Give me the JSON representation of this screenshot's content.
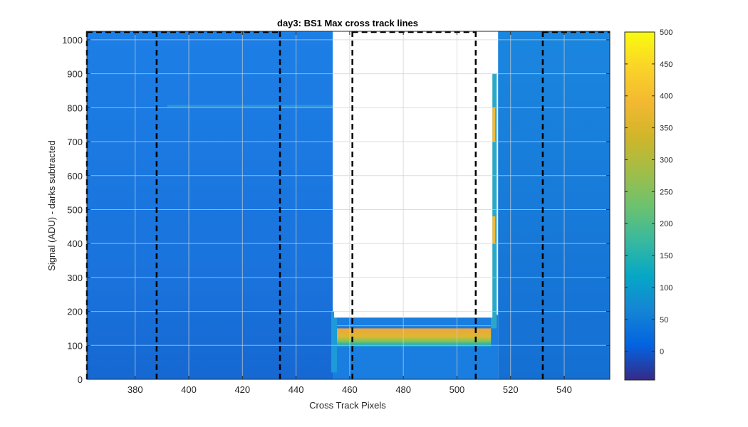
{
  "chart_data": {
    "type": "heatmap",
    "title": "day3: BS1  Max cross track lines",
    "xlabel": "Cross Track Pixels",
    "ylabel": "Signal (ADU) - darks subtracted",
    "xlim": [
      362,
      557
    ],
    "ylim": [
      0,
      1025
    ],
    "x_ticks": [
      380,
      400,
      420,
      440,
      460,
      480,
      500,
      520,
      540
    ],
    "y_ticks": [
      0,
      100,
      200,
      300,
      400,
      500,
      600,
      700,
      800,
      900,
      1000
    ],
    "grid": true,
    "colorbar": {
      "range": [
        -45,
        500
      ],
      "ticks": [
        0,
        50,
        100,
        150,
        200,
        250,
        300,
        350,
        400,
        450,
        500
      ],
      "colormap": "parula"
    },
    "saturated_region": {
      "x_start": 451,
      "x_end": 518,
      "above_signal": 165
    },
    "box_lines": {
      "left": {
        "x": [
          362,
          388,
          434
        ]
      },
      "center": {
        "x": [
          461,
          507
        ]
      },
      "right": {
        "x": [
          532,
          557
        ]
      }
    },
    "colors": {
      "background_level": "#1a78e0",
      "dashed_line": "#000000",
      "grid": "#cfcfcf"
    }
  }
}
